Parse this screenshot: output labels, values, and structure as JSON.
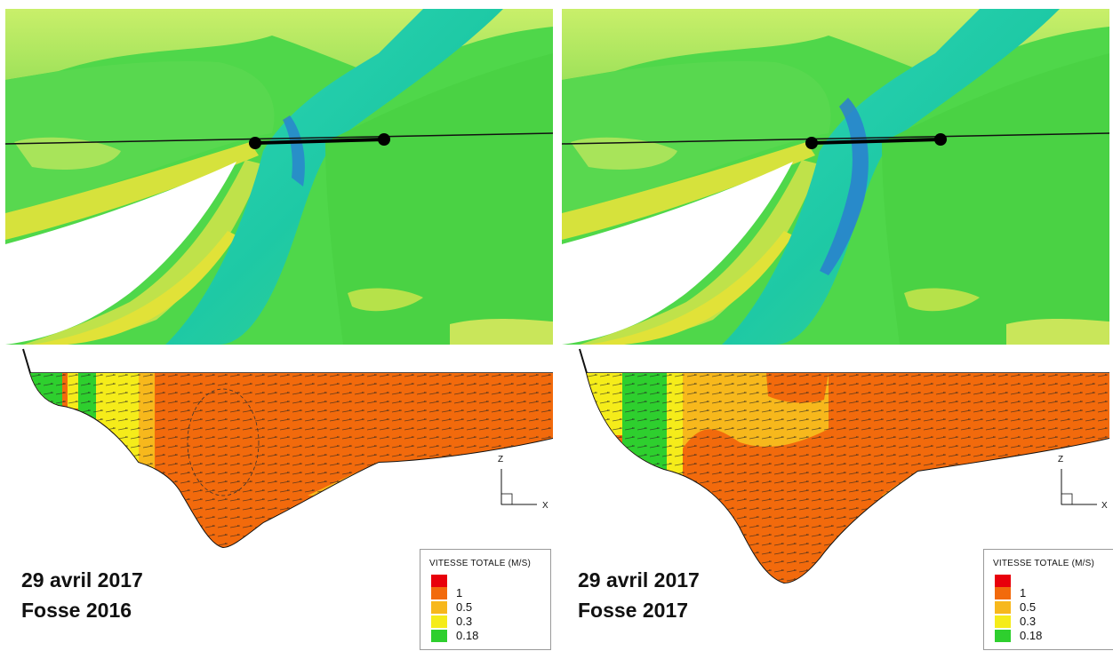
{
  "panels": [
    {
      "id": "left",
      "caption_line1": "29 avril 2017",
      "caption_line2": "Fosse 2016",
      "legend": {
        "title": "VITESSE TOTALE  (M/S)",
        "levels": [
          {
            "label": "",
            "color": "#e8000b"
          },
          {
            "label": "1",
            "color": "#f26a0c"
          },
          {
            "label": "0.5",
            "color": "#f7b81c"
          },
          {
            "label": "0.3",
            "color": "#f5ec1a"
          },
          {
            "label": "0.18",
            "color": "#2ecf2e"
          }
        ]
      },
      "axes": {
        "z": "Z",
        "x": "X"
      }
    },
    {
      "id": "right",
      "caption_line1": "29 avril 2017",
      "caption_line2": "Fosse 2017",
      "legend": {
        "title": "VITESSE TOTALE  (M/S)",
        "levels": [
          {
            "label": "",
            "color": "#e8000b"
          },
          {
            "label": "1",
            "color": "#f26a0c"
          },
          {
            "label": "0.5",
            "color": "#f7b81c"
          },
          {
            "label": "0.3",
            "color": "#f5ec1a"
          },
          {
            "label": "0.18",
            "color": "#2ecf2e"
          }
        ]
      },
      "axes": {
        "z": "Z",
        "x": "X"
      }
    }
  ],
  "colors": {
    "terrain_green": "#4fd74a",
    "terrain_light": "#b9ec5c",
    "channel_cyan": "#2fd6b8",
    "deep_blue": "#2a7fd0",
    "bank_yellow": "#d6e23c",
    "section_orange": "#f26a0c",
    "section_yellow": "#f5c51c",
    "section_green": "#2ecf2e"
  }
}
